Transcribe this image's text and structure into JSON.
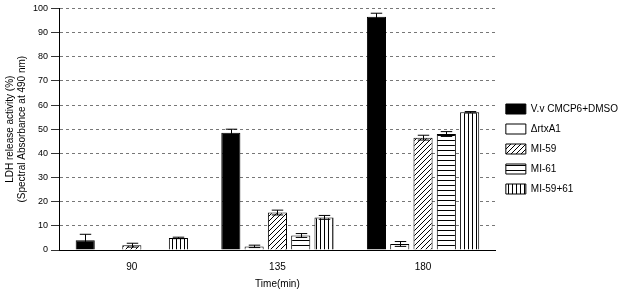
{
  "chart_data": {
    "type": "bar",
    "x_label": "Time(min)",
    "y_label": [
      "LDH release activity (%)",
      "(Spectral Absorbance at 490 nm)"
    ],
    "categories": [
      "90",
      "135",
      "180"
    ],
    "series": [
      {
        "name": "V.v CMCP6+DMSO",
        "color": "#000000",
        "values": [
          4,
          48.5,
          96.5
        ],
        "error": [
          2.5,
          1.5,
          1.5
        ]
      },
      {
        "name": "ΔrtxA1",
        "color": "#ffffff",
        "values": [
          0,
          1.5,
          2.5
        ],
        "error": [
          0,
          0.5,
          1
        ]
      },
      {
        "name": "MI-59",
        "color": "#000000",
        "values": [
          2,
          15.5,
          46.5
        ],
        "error": [
          0.8,
          1,
          1
        ]
      },
      {
        "name": "MI-61",
        "color": "#000000",
        "values": [
          0,
          6,
          48
        ],
        "error": [
          0,
          0.8,
          1
        ]
      },
      {
        "name": "MI-59+61",
        "color": "#000000",
        "values": [
          5,
          13.5,
          57
        ],
        "error": [
          0.3,
          0.8,
          0.3
        ]
      }
    ],
    "ylim": [
      0,
      100
    ],
    "yticks": [
      0,
      10,
      20,
      30,
      40,
      50,
      60,
      70,
      80,
      90,
      100
    ],
    "grid": true,
    "legend": "right"
  }
}
